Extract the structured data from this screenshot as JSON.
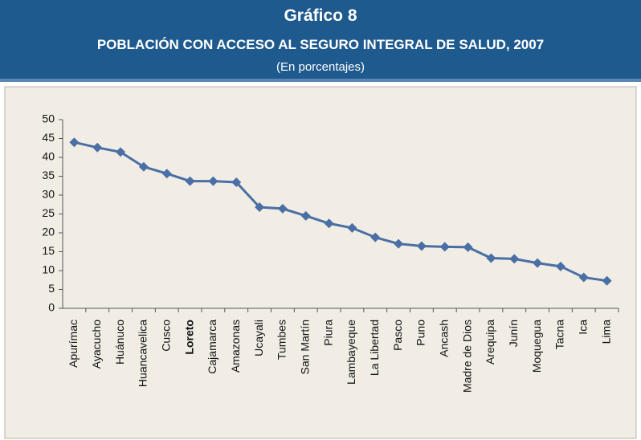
{
  "chart_data": {
    "type": "line",
    "title": "Gráfico 8",
    "subtitle": "POBLACIÓN CON ACCESO AL SEGURO INTEGRAL DE SALUD, 2007",
    "note": "(En porcentajes)",
    "categories": [
      "Apurímac",
      "Ayacucho",
      "Huánuco",
      "Huancavelica",
      "Cusco",
      "Loreto",
      "Cajamarca",
      "Amazonas",
      "Ucayali",
      "Tumbes",
      "San Martín",
      "Piura",
      "Lambayeque",
      "La Libertad",
      "Pasco",
      "Puno",
      "Ancash",
      "Madre de Dios",
      "Arequipa",
      "Junín",
      "Moquegua",
      "Tacna",
      "Ica",
      "Lima"
    ],
    "values": [
      44.0,
      42.6,
      41.4,
      37.5,
      35.7,
      33.7,
      33.7,
      33.4,
      26.8,
      26.4,
      24.5,
      22.5,
      21.3,
      18.8,
      17.1,
      16.5,
      16.3,
      16.2,
      13.3,
      13.1,
      12.0,
      11.1,
      8.2,
      7.3
    ],
    "color": "#4a6fa5",
    "bold_category_index": 5,
    "ylim": [
      0,
      50
    ],
    "yticks": [
      0,
      5,
      10,
      15,
      20,
      25,
      30,
      35,
      40,
      45,
      50
    ],
    "grid": false
  }
}
